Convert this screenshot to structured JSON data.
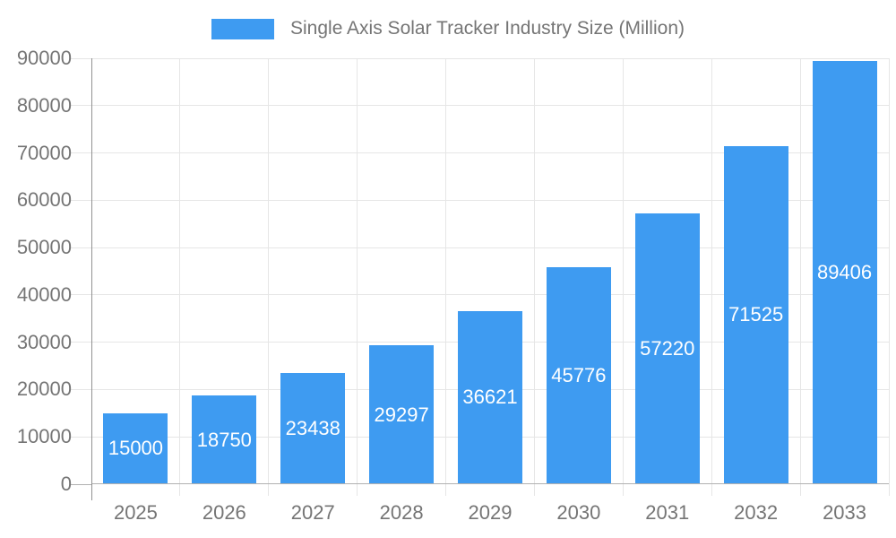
{
  "chart_data": {
    "type": "bar",
    "title": "Single Axis Solar Tracker Industry Size (Million)",
    "categories": [
      "2025",
      "2026",
      "2027",
      "2028",
      "2029",
      "2030",
      "2031",
      "2032",
      "2033"
    ],
    "values": [
      15000,
      18750,
      23438,
      29297,
      36621,
      45776,
      57220,
      71525,
      89406
    ],
    "series": [
      {
        "name": "Single Axis Solar Tracker Industry Size (Million)",
        "values": [
          15000,
          18750,
          23438,
          29297,
          36621,
          45776,
          57220,
          71525,
          89406
        ]
      }
    ],
    "xlabel": "",
    "ylabel": "",
    "ylim": [
      0,
      90000
    ],
    "ytick_step": 10000,
    "ytick_labels": [
      "0",
      "10000",
      "20000",
      "30000",
      "40000",
      "50000",
      "60000",
      "70000",
      "80000",
      "90000"
    ],
    "grid": true,
    "legend_position": "top",
    "value_labels_shown": true,
    "value_label_position": "center-inside-bar"
  },
  "colors": {
    "bar": "#3E9BF1",
    "value_label": "#FFFFFF",
    "axis_text": "#757575",
    "grid": "#E6E6E6",
    "baseline": "#B1B1B1",
    "axis_line": "#919191",
    "background": "#FFFFFF"
  }
}
